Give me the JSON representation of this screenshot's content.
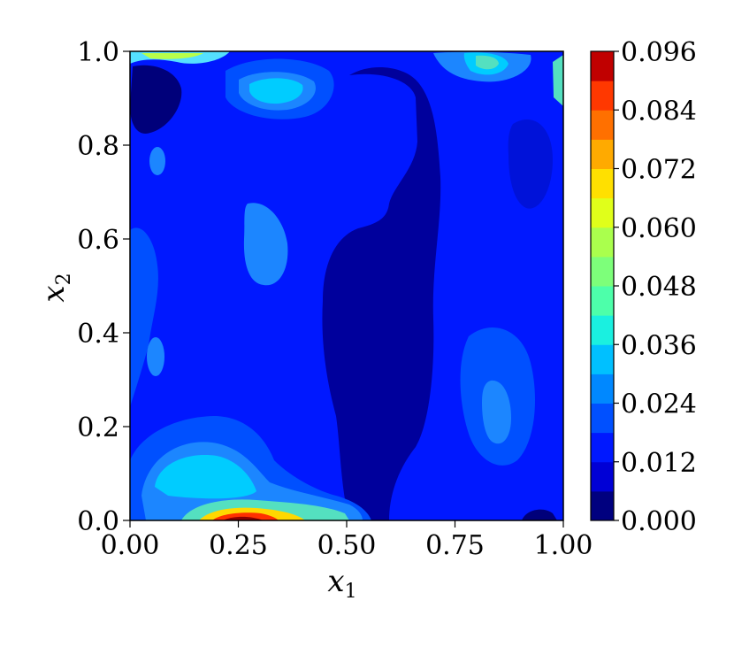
{
  "chart_data": {
    "type": "heatmap",
    "subtype": "filled-contour",
    "colormap": "jet",
    "xlabel": "x",
    "xlabel_sub": "1",
    "ylabel": "x",
    "ylabel_sub": "2",
    "xlim": [
      0.0,
      1.0
    ],
    "ylim": [
      0.0,
      1.0
    ],
    "x_ticks": [
      "0.00",
      "0.25",
      "0.50",
      "0.75",
      "1.00"
    ],
    "y_ticks": [
      "0.0",
      "0.2",
      "0.4",
      "0.6",
      "0.8",
      "1.0"
    ],
    "colorbar": {
      "range": [
        0.0,
        0.096
      ],
      "levels": 16,
      "ticks": [
        "0.000",
        "0.012",
        "0.024",
        "0.036",
        "0.048",
        "0.060",
        "0.072",
        "0.084",
        "0.096"
      ]
    },
    "grid": false,
    "legend": false
  }
}
